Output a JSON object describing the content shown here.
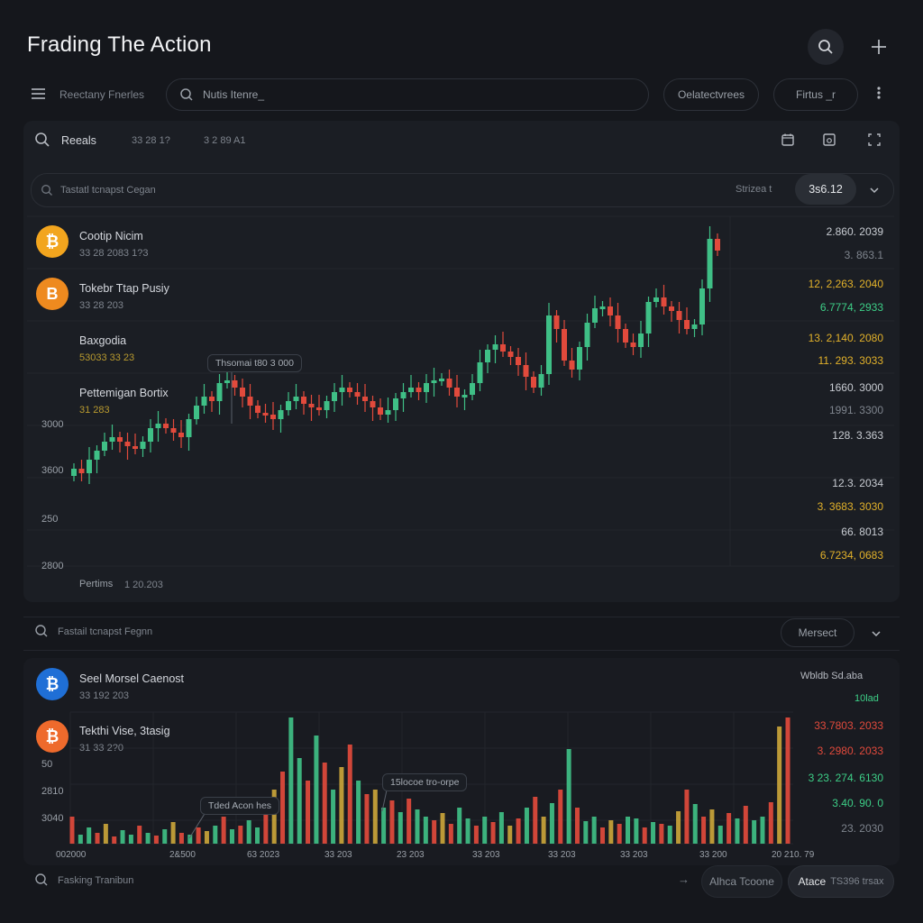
{
  "header": {
    "title": "Frading The Action",
    "menu_label": "Reectany Fnerles",
    "search_placeholder": "Nutis Itenre_",
    "pill_right": "Oelatectvrees",
    "pill_filter": "Firtus _r"
  },
  "chart_panel": {
    "section_label": "Reeals",
    "meta_a": "33 28 1?",
    "meta_b": "3 2 89 A1",
    "filter_placeholder": "Tastatl tcnapst Cegan",
    "range_label": "Strizea t",
    "range_value": "3s6.12",
    "footer_label": "Pertims",
    "footer_value": "1 20.203",
    "tooltip": "Thsomai t80 3 000"
  },
  "coins_top": [
    {
      "name": "Cootip Nicim",
      "sub": "33 28   2083   1?3"
    },
    {
      "name": "Tokebr Ttap Pusiy",
      "sub": "33 28   203"
    },
    {
      "name": "Baxgodia",
      "sub": "53033   33 23"
    },
    {
      "name": "Pettemigan Bortix",
      "sub": "31 283"
    }
  ],
  "right_values_top": [
    {
      "text": "2.860. 2039",
      "color": "#c8ccd2"
    },
    {
      "text": "3. 863.1",
      "color": "#7e848d"
    },
    {
      "text": "12, 2,263. 2040",
      "color": "#e2b12a"
    },
    {
      "text": "6.7774, 2933",
      "color": "#3dcf87"
    },
    {
      "text": "13. 2,140. 2080",
      "color": "#e2b12a"
    },
    {
      "text": "11. 293. 3033",
      "color": "#e2b12a"
    },
    {
      "text": "1660. 3000",
      "color": "#c8ccd2"
    },
    {
      "text": "1991. 3300",
      "color": "#7e848d"
    },
    {
      "text": "128. 3.363",
      "color": "#c8ccd2"
    },
    {
      "text": "12.3. 2034",
      "color": "#c8ccd2"
    },
    {
      "text": "3. 3683. 3030",
      "color": "#e2b12a"
    },
    {
      "text": "66. 8013",
      "color": "#c8ccd2"
    },
    {
      "text": "6.7234, 0683",
      "color": "#e2b12a"
    }
  ],
  "y_labels_top": [
    "3000",
    "3600",
    "250",
    "2800"
  ],
  "volume_panel": {
    "filter_placeholder": "Fastail tcnapst Fegnn",
    "filter_button": "Mersect",
    "legend_label": "Wbldb Sd.aba",
    "legend_sub": "10lad",
    "tooltip_a": "Tded Acon hes",
    "tooltip_b": "15locoe tro-orpe"
  },
  "coins_bottom": [
    {
      "name": "Seel Morsel Caenost",
      "sub": "33 192  203"
    },
    {
      "name": "Tekthi Vise, 3tasig",
      "sub": "31 33   2?0"
    }
  ],
  "right_values_bottom": [
    {
      "text": "33.7803. 2033",
      "color": "#e14a3c"
    },
    {
      "text": "3. 2980. 2033",
      "color": "#e14a3c"
    },
    {
      "text": "3 23. 274. 6130",
      "color": "#3dcf87"
    },
    {
      "text": "3.40. 90. 0",
      "color": "#3dcf87"
    },
    {
      "text": "23. 2030",
      "color": "#7e848d"
    }
  ],
  "y_labels_bottom": [
    "50",
    "2810",
    "3040"
  ],
  "x_labels_bottom": [
    "002000",
    "2&500",
    "63 2023",
    "33 203",
    "23 203",
    "33 203",
    "33 203",
    "33 203",
    "33 200",
    "20 210. 79"
  ],
  "footer": {
    "search_placeholder": "Fasking Tranibun",
    "arrow_label": "→",
    "button_a": "Alhca Tcoone",
    "button_b_bold": "Atace",
    "button_b_rest": "TS396 trsax"
  },
  "colors": {
    "up": "#3fbf86",
    "down": "#e14a3c",
    "gold": "#e2b12a"
  },
  "chart_data": [
    {
      "type": "candlestick",
      "y_labels": [
        "3000",
        "3600",
        "250",
        "2800"
      ],
      "values_close": [
        120,
        115,
        130,
        140,
        150,
        155,
        150,
        145,
        142,
        150,
        165,
        170,
        165,
        160,
        155,
        175,
        190,
        200,
        195,
        215,
        218,
        210,
        200,
        190,
        182,
        180,
        175,
        185,
        195,
        200,
        192,
        188,
        185,
        195,
        205,
        210,
        205,
        200,
        195,
        188,
        180,
        185,
        198,
        205,
        210,
        205,
        215,
        218,
        220,
        210,
        200,
        202,
        215,
        238,
        252,
        258,
        250,
        244,
        235,
        222,
        210,
        225,
        290,
        275,
        240,
        230,
        255,
        282,
        298,
        300,
        290,
        275,
        260,
        255,
        270,
        305,
        310,
        300,
        295,
        285,
        275,
        280,
        320,
        375,
        362
      ]
    },
    {
      "type": "bar",
      "series": [
        {
          "values": [
            30,
            10,
            18,
            12,
            22,
            8,
            15,
            10,
            20,
            12,
            9,
            16,
            24,
            12,
            10,
            18,
            14,
            20,
            30,
            16,
            20,
            26,
            18,
            45,
            60,
            80,
            140,
            95,
            70,
            120,
            90,
            60,
            85,
            110,
            70,
            55,
            60,
            40,
            48,
            35,
            50,
            38,
            30,
            26,
            34,
            22,
            40,
            28,
            20,
            30,
            24,
            35,
            20,
            28,
            40,
            52,
            30,
            45,
            60,
            105,
            40,
            25,
            30,
            18,
            26,
            22,
            30,
            28,
            18,
            24,
            22,
            20,
            36,
            60,
            44,
            30,
            38,
            20,
            34,
            28,
            42,
            26,
            30,
            46,
            130,
            140
          ]
        }
      ]
    }
  ]
}
